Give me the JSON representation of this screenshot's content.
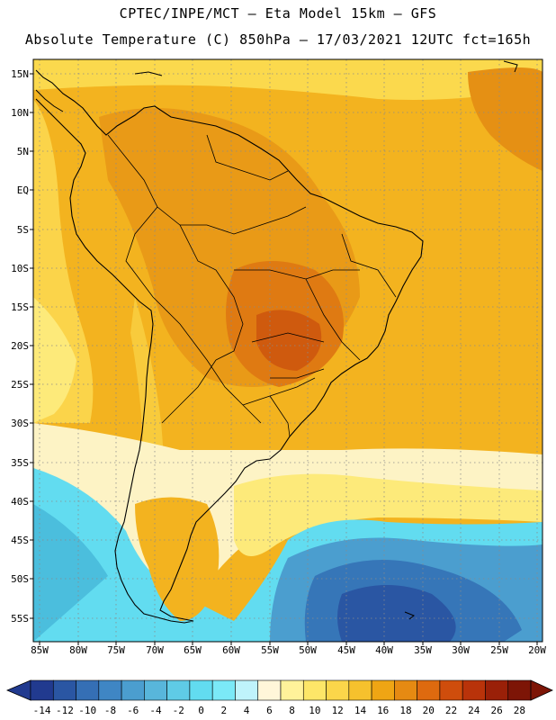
{
  "header": {
    "title_line1": "CPTEC/INPE/MCT –  Eta Model 15km – GFS",
    "title_line2": "Absolute Temperature (C) 850hPa – 17/03/2021 12UTC fct=165h"
  },
  "map": {
    "lat_labels": [
      "15N",
      "10N",
      "5N",
      "EQ",
      "5S",
      "10S",
      "15S",
      "20S",
      "25S",
      "30S",
      "35S",
      "40S",
      "45S",
      "50S",
      "55S"
    ],
    "lon_labels": [
      "85W",
      "80W",
      "75W",
      "70W",
      "65W",
      "60W",
      "55W",
      "50W",
      "45W",
      "40W",
      "35W",
      "30W",
      "25W",
      "20W"
    ]
  },
  "colorbar": {
    "ticks": [
      "-14",
      "-12",
      "-10",
      "-8",
      "-6",
      "-4",
      "-2",
      "0",
      "2",
      "4",
      "6",
      "8",
      "10",
      "12",
      "14",
      "16",
      "18",
      "20",
      "22",
      "24",
      "26",
      "28"
    ],
    "colors": [
      "#213a8f",
      "#2a56a3",
      "#356fb5",
      "#3f86c4",
      "#4b9ecf",
      "#58b6db",
      "#5fcbe6",
      "#62dcf0",
      "#7be9f7",
      "#bff3fb",
      "#fff6d9",
      "#fff29a",
      "#fde668",
      "#fbd64a",
      "#f6c12d",
      "#efa514",
      "#e68a12",
      "#de6a0f",
      "#cf4d0c",
      "#b9330a",
      "#9a2008",
      "#7d1506"
    ]
  }
}
